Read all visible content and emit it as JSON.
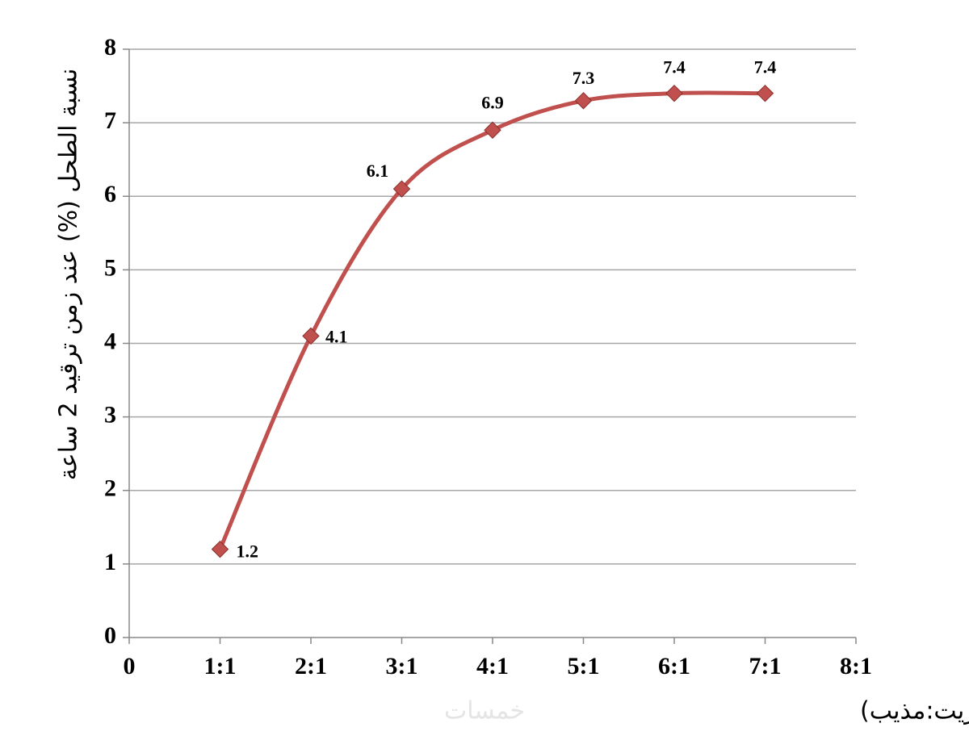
{
  "chart_data": {
    "type": "line",
    "y_label": "نسبة الطحل (%) عند زمن ترقيد 2 ساعة",
    "x_label": "نسبة الخلط (زيت:مذيب)",
    "watermark": "خمسات",
    "x": [
      1,
      2,
      3,
      4,
      5,
      6,
      7
    ],
    "series": [
      {
        "color": "#c0504d",
        "values": [
          1.2,
          4.1,
          6.1,
          6.9,
          7.3,
          7.4,
          7.4
        ]
      }
    ],
    "xlim": [
      0,
      8
    ],
    "xticks": [
      0,
      {
        "value": 1,
        "label": "1:1"
      },
      {
        "value": 2,
        "label": "2:1"
      },
      {
        "value": 3,
        "label": "3:1"
      },
      {
        "value": 4,
        "label": "4:1"
      },
      {
        "value": 5,
        "label": "5:1"
      },
      {
        "value": 6,
        "label": "6:1"
      },
      {
        "value": 7,
        "label": "7:1"
      },
      {
        "value": 8,
        "label": "8:1"
      }
    ],
    "ylim": [
      0,
      8
    ],
    "yticks": [
      0,
      1,
      2,
      3,
      4,
      5,
      6,
      7,
      8
    ],
    "grid": true,
    "smooth": true
  }
}
